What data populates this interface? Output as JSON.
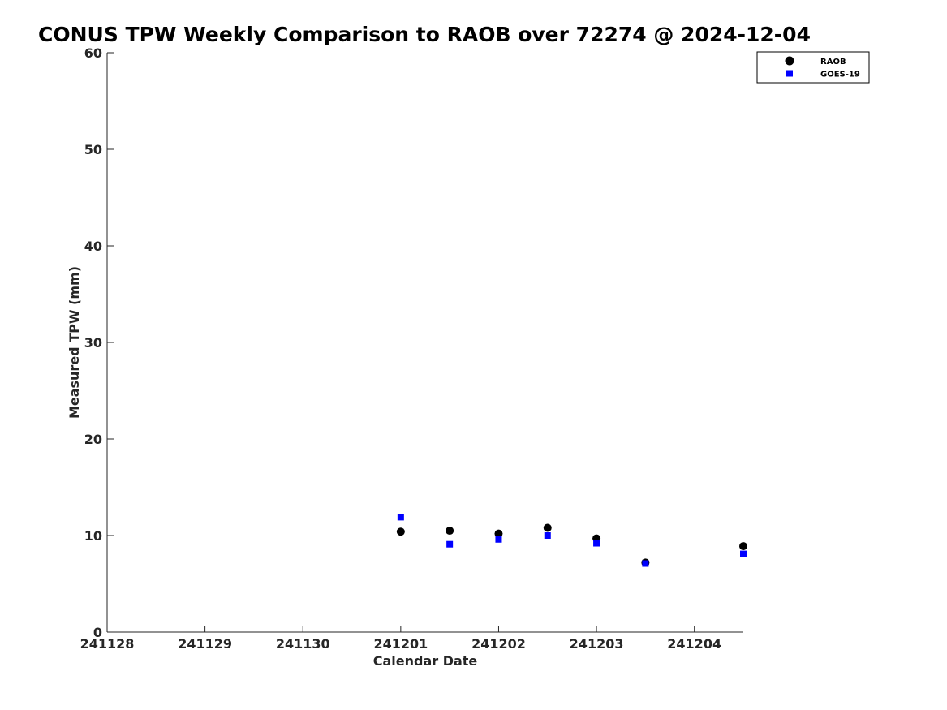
{
  "chart_data": {
    "type": "scatter",
    "title": "CONUS TPW Weekly Comparison to RAOB over 72274 @ 2024-12-04",
    "xlabel": "Calendar Date",
    "ylabel": "Measured TPW (mm)",
    "x_tick_labels": [
      "241128",
      "241129",
      "241130",
      "241201",
      "241202",
      "241203",
      "241204"
    ],
    "xlim": [
      "2024-11-28T00:00",
      "2024-12-04T12:00"
    ],
    "y_ticks": [
      0,
      10,
      20,
      30,
      40,
      50,
      60
    ],
    "ylim": [
      0,
      60
    ],
    "grid": false,
    "legend_position": "top-right",
    "series": [
      {
        "name": "RAOB",
        "marker": "circle",
        "color": "#000000",
        "points": [
          {
            "x": "2024-12-01T00:00",
            "y": 10.4
          },
          {
            "x": "2024-12-01T12:00",
            "y": 10.5
          },
          {
            "x": "2024-12-02T00:00",
            "y": 10.2
          },
          {
            "x": "2024-12-02T12:00",
            "y": 10.8
          },
          {
            "x": "2024-12-03T00:00",
            "y": 9.7
          },
          {
            "x": "2024-12-03T12:00",
            "y": 7.2
          },
          {
            "x": "2024-12-04T12:00",
            "y": 8.9
          }
        ]
      },
      {
        "name": "GOES-19",
        "marker": "square",
        "color": "#0000ff",
        "points": [
          {
            "x": "2024-12-01T00:00",
            "y": 11.9
          },
          {
            "x": "2024-12-01T12:00",
            "y": 9.1
          },
          {
            "x": "2024-12-02T00:00",
            "y": 9.6
          },
          {
            "x": "2024-12-02T12:00",
            "y": 10.0
          },
          {
            "x": "2024-12-03T00:00",
            "y": 9.2
          },
          {
            "x": "2024-12-03T12:00",
            "y": 7.1
          },
          {
            "x": "2024-12-04T12:00",
            "y": 8.1
          }
        ]
      }
    ]
  }
}
